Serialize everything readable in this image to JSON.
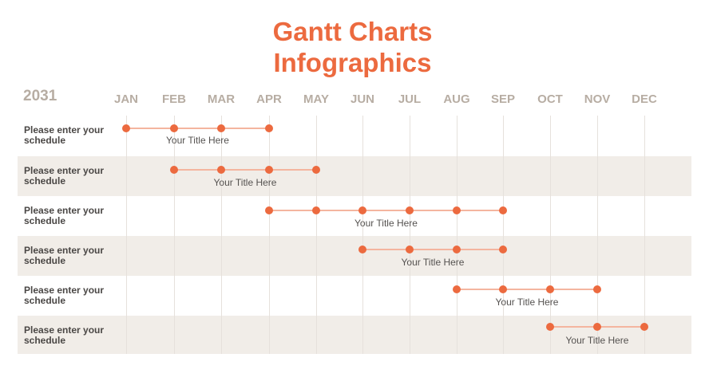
{
  "title_line1": "Gantt Charts",
  "title_line2": "Infographics",
  "chart_data": {
    "type": "gantt",
    "year": "2031",
    "months": [
      "JAN",
      "FEB",
      "MAR",
      "APR",
      "MAY",
      "JUN",
      "JUL",
      "AUG",
      "SEP",
      "OCT",
      "NOV",
      "DEC"
    ],
    "tasks": [
      {
        "label": "Please enter your schedule",
        "bar_title": "Your Title Here",
        "start": "JAN",
        "end": "APR"
      },
      {
        "label": "Please enter your schedule",
        "bar_title": "Your Title Here",
        "start": "FEB",
        "end": "MAY"
      },
      {
        "label": "Please enter your schedule",
        "bar_title": "Your Title Here",
        "start": "APR",
        "end": "SEP"
      },
      {
        "label": "Please enter your schedule",
        "bar_title": "Your Title Here",
        "start": "JUN",
        "end": "SEP"
      },
      {
        "label": "Please enter your schedule",
        "bar_title": "Your Title Here",
        "start": "AUG",
        "end": "NOV"
      },
      {
        "label": "Please enter your schedule",
        "bar_title": "Your Title Here",
        "start": "OCT",
        "end": "DEC"
      }
    ]
  },
  "colors": {
    "accent": "#ec6a3f",
    "line": "#f4b59f",
    "row_shade": "#f1ede8",
    "muted_text": "#b7ada3"
  }
}
